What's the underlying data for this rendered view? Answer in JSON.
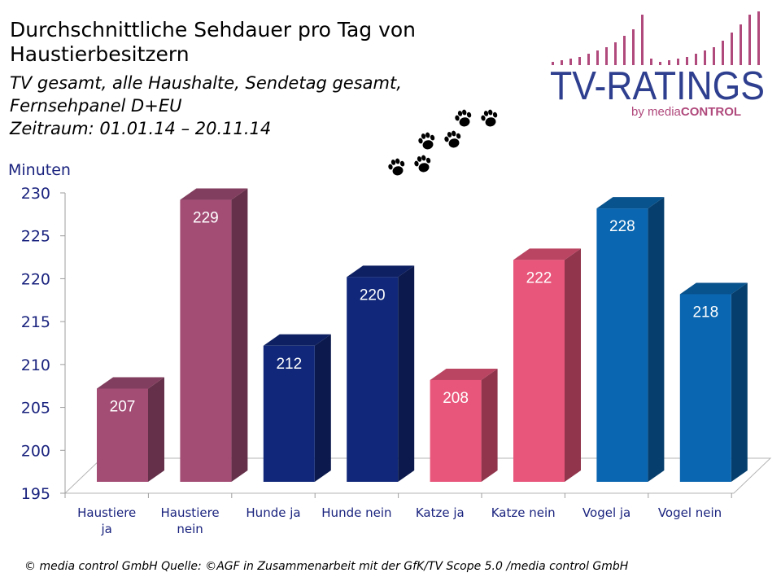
{
  "header": {
    "title": "Durchschnittliche Sehdauer pro Tag von Haustierbesitzern",
    "subtitle_lines": [
      "TV gesamt, alle Haushalte, Sendetag gesamt,",
      "Fernsehpanel D+EU",
      "Zeitraum: 01.01.14 – 20.11.14"
    ]
  },
  "logo": {
    "main_text": "TV-RATINGS",
    "by_text": "by media",
    "control_text": "CONTROL"
  },
  "chart_data": {
    "type": "bar",
    "ylabel": "Minuten",
    "ylim": [
      195,
      230
    ],
    "yticks": [
      195,
      200,
      205,
      210,
      215,
      220,
      225,
      230
    ],
    "categories": [
      "Haustiere ja",
      "Haustiere nein",
      "Hunde ja",
      "Hunde nein",
      "Katze ja",
      "Katze nein",
      "Vogel ja",
      "Vogel nein"
    ],
    "category_lines": [
      [
        "Haustiere",
        "ja"
      ],
      [
        "Haustiere",
        "nein"
      ],
      [
        "Hunde ja"
      ],
      [
        "Hunde nein"
      ],
      [
        "Katze ja"
      ],
      [
        "Katze nein"
      ],
      [
        "Vogel ja"
      ],
      [
        "Vogel nein"
      ]
    ],
    "values": [
      207,
      229,
      212,
      220,
      208,
      222,
      228,
      218
    ],
    "colors": [
      "#a34d75",
      "#a34d75",
      "#11287a",
      "#11287a",
      "#e8567b",
      "#e8567b",
      "#0a66b0",
      "#0a66b0"
    ],
    "data_labels": true,
    "grid": false,
    "style": "3d"
  },
  "footer": {
    "text": "© media control GmbH  Quelle: ©AGF in Zusammenarbeit mit der GfK/TV Scope 5.0 /media control GmbH"
  }
}
